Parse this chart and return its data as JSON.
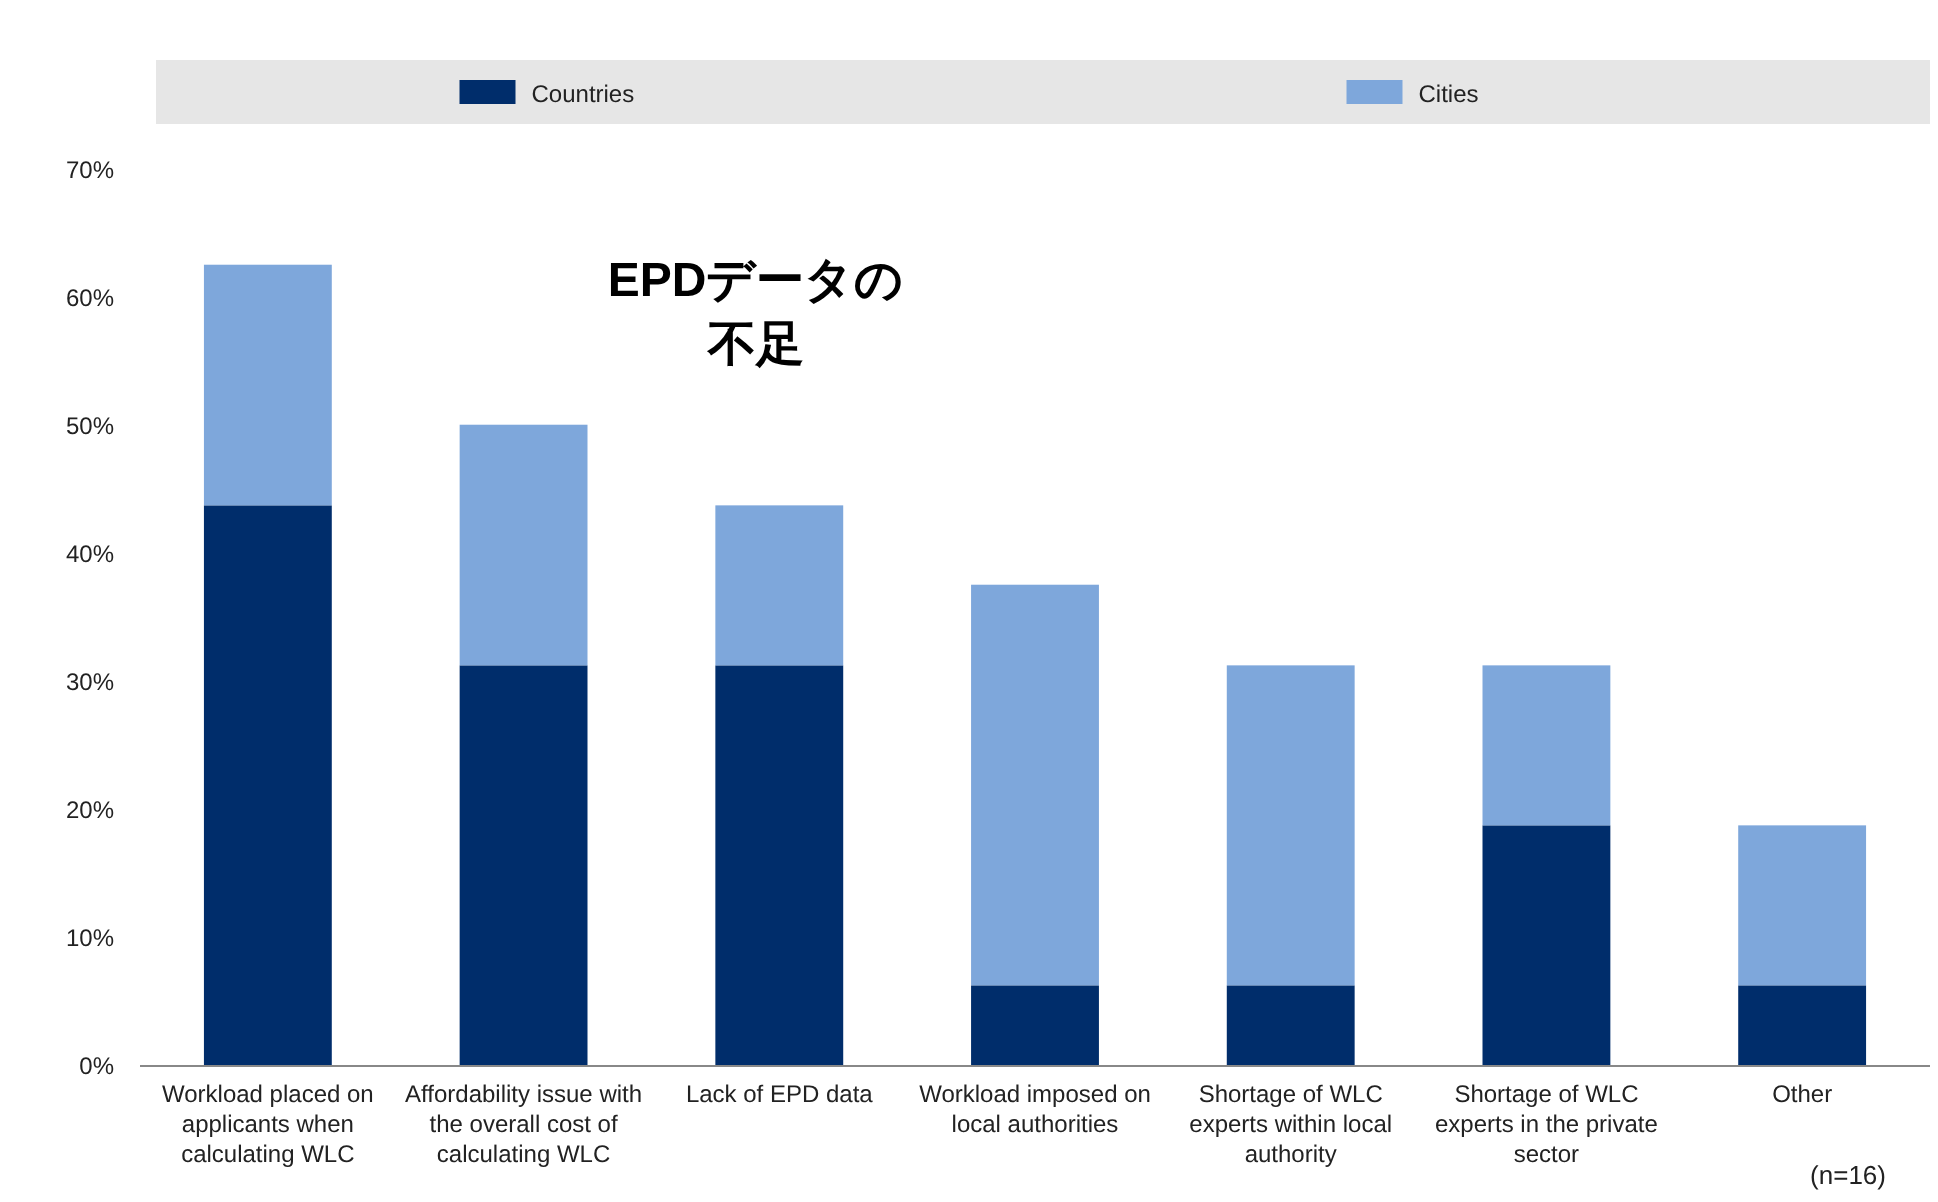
{
  "chart_data": {
    "type": "bar",
    "stacked": true,
    "categories": [
      "Workload placed on applicants when calculating WLC",
      "Affordability issue with the overall cost of calculating WLC",
      "Lack of EPD data",
      "Workload imposed on local authorities",
      "Shortage of WLC experts within local authority",
      "Shortage of WLC experts in the private sector",
      "Other"
    ],
    "series": [
      {
        "name": "Countries",
        "color": "#002d6b",
        "values": [
          43.8,
          31.3,
          31.3,
          6.3,
          6.3,
          18.8,
          6.3
        ]
      },
      {
        "name": "Cities",
        "color": "#7ea7db",
        "values": [
          18.8,
          18.8,
          12.5,
          31.3,
          25,
          12.5,
          12.5
        ]
      }
    ],
    "ylim": [
      0,
      70
    ],
    "yticks": [
      {
        "value": 0,
        "label": "0%"
      },
      {
        "value": 10,
        "label": "10%"
      },
      {
        "value": 20,
        "label": "20%"
      },
      {
        "value": 30,
        "label": "30%"
      },
      {
        "value": 40,
        "label": "40%"
      },
      {
        "value": 50,
        "label": "50%"
      },
      {
        "value": 60,
        "label": "60%"
      },
      {
        "value": 70,
        "label": "70%"
      }
    ],
    "legend": "top",
    "grid": false,
    "annotations": [
      "EPDデータの",
      "不足",
      "(n=16)"
    ]
  }
}
